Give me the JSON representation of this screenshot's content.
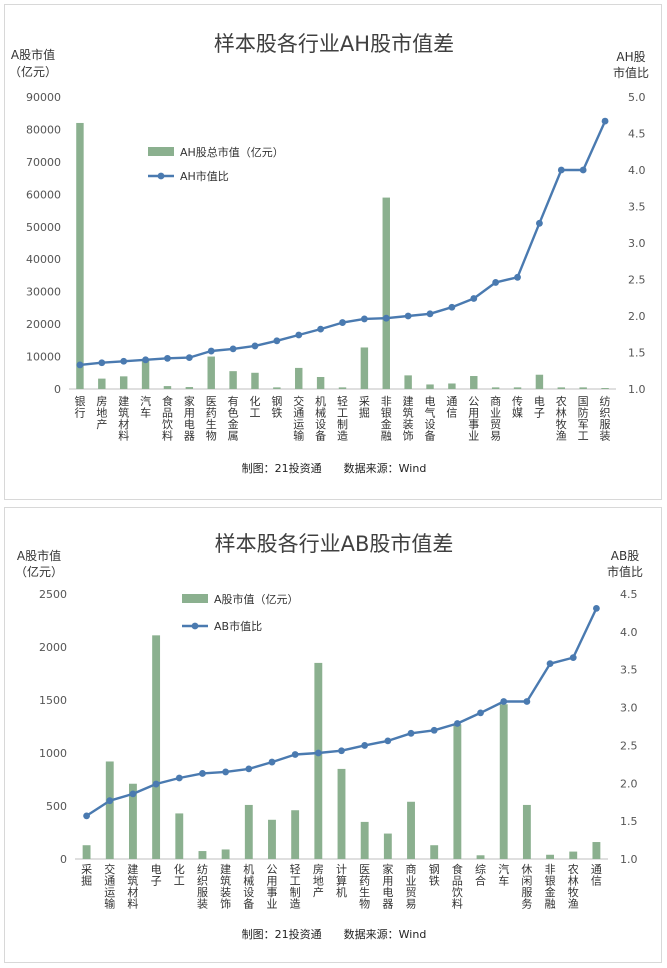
{
  "chart_data": [
    {
      "type": "bar+line",
      "title": "样本股各行业AH股市值差",
      "y_left_label": [
        "A股市值",
        "（亿元）"
      ],
      "y_right_label": [
        "AH股",
        "市值比"
      ],
      "ylim_left": [
        0,
        90000
      ],
      "ylim_right": [
        1.0,
        5.0
      ],
      "yticks_left": [
        "0",
        "10000",
        "20000",
        "30000",
        "40000",
        "50000",
        "60000",
        "70000",
        "80000",
        "90000"
      ],
      "yticks_right": [
        "1.0",
        "1.5",
        "2.0",
        "2.5",
        "3.0",
        "3.5",
        "4.0",
        "4.5",
        "5.0"
      ],
      "categories": [
        "银行",
        "房地产",
        "建筑材料",
        "汽车",
        "食品饮料",
        "家用电器",
        "医药生物",
        "有色金属",
        "化工",
        "钢铁",
        "交通运输",
        "机械设备",
        "轻工制造",
        "采掘",
        "非银金融",
        "建筑装饰",
        "电气设备",
        "通信",
        "公用事业",
        "商业贸易",
        "传媒",
        "电子",
        "农林牧渔",
        "国防军工",
        "纺织服装"
      ],
      "series": [
        {
          "name": "AH股总市值（亿元）",
          "kind": "bar",
          "axis": "left",
          "values": [
            82000,
            3200,
            3900,
            9000,
            900,
            600,
            10000,
            5500,
            5000,
            500,
            6500,
            3700,
            500,
            12800,
            59000,
            4200,
            1400,
            1700,
            4000,
            500,
            500,
            4400,
            500,
            500,
            300
          ]
        },
        {
          "name": "AH市值比",
          "kind": "line",
          "axis": "right",
          "values": [
            1.33,
            1.36,
            1.38,
            1.4,
            1.42,
            1.43,
            1.52,
            1.55,
            1.59,
            1.66,
            1.74,
            1.82,
            1.91,
            1.96,
            1.97,
            2.0,
            2.03,
            2.12,
            2.24,
            2.46,
            2.53,
            3.27,
            4.0,
            4.0,
            4.67
          ]
        }
      ],
      "source_note": "制图：21投资通　　数据来源：Wind"
    },
    {
      "type": "bar+line",
      "title": "样本股各行业AB股市值差",
      "y_left_label": [
        "A股市值",
        "（亿元）"
      ],
      "y_right_label": [
        "AB股",
        "市值比"
      ],
      "ylim_left": [
        0,
        2500
      ],
      "ylim_right": [
        1.0,
        4.5
      ],
      "yticks_left": [
        "0",
        "500",
        "1000",
        "1500",
        "2000",
        "2500"
      ],
      "yticks_right": [
        "1.0",
        "1.5",
        "2.0",
        "2.5",
        "3.0",
        "3.5",
        "4.0",
        "4.5"
      ],
      "categories": [
        "采掘",
        "交通运输",
        "建筑材料",
        "电子",
        "化工",
        "纺织服装",
        "建筑装饰",
        "机械设备",
        "公用事业",
        "轻工制造",
        "房地产",
        "计算机",
        "医药生物",
        "家用电器",
        "商业贸易",
        "钢铁",
        "食品饮料",
        "综合",
        "汽车",
        "休闲服务",
        "非银金融",
        "农林牧渔",
        "通信"
      ],
      "series": [
        {
          "name": "A股市值（亿元）",
          "kind": "bar",
          "axis": "left",
          "values": [
            130,
            920,
            710,
            2110,
            430,
            75,
            90,
            510,
            370,
            460,
            1850,
            850,
            350,
            240,
            540,
            130,
            1270,
            35,
            1460,
            510,
            40,
            70,
            160
          ]
        },
        {
          "name": "AB市值比",
          "kind": "line",
          "axis": "right",
          "values": [
            1.57,
            1.77,
            1.86,
            1.99,
            2.07,
            2.13,
            2.15,
            2.19,
            2.28,
            2.38,
            2.4,
            2.43,
            2.5,
            2.56,
            2.66,
            2.7,
            2.79,
            2.93,
            3.08,
            3.08,
            3.58,
            3.66,
            4.31
          ]
        }
      ],
      "source_note": "制图：21投资通　　数据来源：Wind"
    }
  ]
}
